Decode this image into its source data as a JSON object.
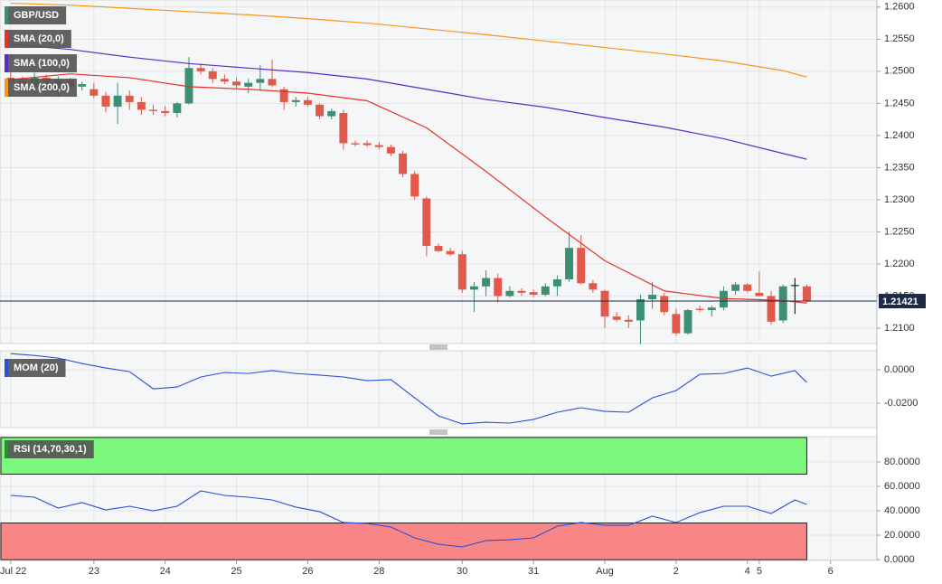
{
  "chart_data": [
    {
      "type": "candlestick",
      "name": "GBP/USD",
      "color": "#3d8f74",
      "up_color": "#3d8f74",
      "down_color": "#e0594a",
      "neutral_color": "#000000",
      "x": [
        0,
        1,
        2,
        3,
        4,
        5,
        6,
        7,
        8,
        9,
        10,
        11,
        12,
        13,
        14,
        15,
        16,
        17,
        18,
        19,
        20,
        21,
        22,
        23,
        24,
        25,
        26,
        27,
        28,
        29,
        30,
        31,
        32,
        33,
        34,
        35,
        36,
        37,
        38,
        39,
        40,
        41,
        42,
        43,
        44,
        45,
        46,
        47,
        48,
        49,
        50,
        51,
        52,
        53,
        54,
        55,
        56,
        57,
        58,
        59,
        60,
        61,
        62,
        63,
        64,
        65,
        66,
        67
      ],
      "open": [
        1.249,
        1.2485,
        1.2475,
        1.249,
        1.2468,
        1.2486,
        1.2476,
        1.2472,
        1.2462,
        1.2445,
        1.2462,
        1.2452,
        1.244,
        1.2438,
        1.2435,
        1.245,
        1.2505,
        1.25,
        1.2488,
        1.2484,
        1.2476,
        1.2482,
        1.2488,
        1.2472,
        1.2452,
        1.2455,
        1.2448,
        1.243,
        1.2435,
        1.2388,
        1.2388,
        1.2385,
        1.2382,
        1.2372,
        1.234,
        1.2302,
        1.2228,
        1.222,
        1.2215,
        1.216,
        1.2165,
        1.2178,
        1.215,
        1.2158,
        1.2156,
        1.2152,
        1.2165,
        1.2176,
        1.2225,
        1.217,
        1.2158,
        1.2118,
        1.2113,
        1.2112,
        1.2145,
        1.215,
        1.2122,
        1.2092,
        1.213,
        1.2128,
        1.2132,
        1.2158,
        1.2168,
        1.2155,
        1.215,
        1.2112,
        1.2167,
        1.2165
      ],
      "high": [
        1.25,
        1.2492,
        1.2498,
        1.2495,
        1.2492,
        1.249,
        1.2484,
        1.2482,
        1.2468,
        1.2482,
        1.247,
        1.246,
        1.2448,
        1.2446,
        1.2452,
        1.2522,
        1.2512,
        1.2505,
        1.2495,
        1.249,
        1.2488,
        1.251,
        1.2518,
        1.2476,
        1.246,
        1.246,
        1.245,
        1.2442,
        1.244,
        1.2392,
        1.2392,
        1.239,
        1.2386,
        1.2376,
        1.2345,
        1.2305,
        1.2232,
        1.2225,
        1.222,
        1.2172,
        1.219,
        1.2185,
        1.2165,
        1.2162,
        1.216,
        1.217,
        1.2182,
        1.225,
        1.2245,
        1.2175,
        1.216,
        1.2125,
        1.212,
        1.2152,
        1.2172,
        1.2155,
        1.213,
        1.213,
        1.2135,
        1.2135,
        1.2165,
        1.2172,
        1.217,
        1.2188,
        1.2158,
        1.2168,
        1.2178,
        1.2168
      ],
      "low": [
        1.2478,
        1.247,
        1.2465,
        1.2462,
        1.246,
        1.2472,
        1.247,
        1.2458,
        1.2436,
        1.2418,
        1.244,
        1.2432,
        1.2432,
        1.243,
        1.2428,
        1.2448,
        1.2495,
        1.2482,
        1.248,
        1.2472,
        1.2466,
        1.247,
        1.2475,
        1.244,
        1.2445,
        1.2445,
        1.2425,
        1.2425,
        1.2378,
        1.2383,
        1.2382,
        1.2378,
        1.2368,
        1.2335,
        1.23,
        1.2212,
        1.2218,
        1.2212,
        1.2155,
        1.2125,
        1.215,
        1.214,
        1.2148,
        1.215,
        1.2148,
        1.215,
        1.215,
        1.2172,
        1.2168,
        1.2155,
        1.21,
        1.211,
        1.21,
        1.2075,
        1.213,
        1.212,
        1.2088,
        1.209,
        1.2125,
        1.2118,
        1.2128,
        1.2152,
        1.2155,
        1.215,
        1.2105,
        1.2108,
        1.2122,
        1.214
      ],
      "close": [
        1.2485,
        1.2475,
        1.249,
        1.2468,
        1.2486,
        1.2476,
        1.248,
        1.2462,
        1.2445,
        1.2462,
        1.2452,
        1.244,
        1.2438,
        1.2435,
        1.245,
        1.2505,
        1.25,
        1.2488,
        1.2484,
        1.2478,
        1.2482,
        1.2488,
        1.2478,
        1.2452,
        1.2455,
        1.2448,
        1.243,
        1.2438,
        1.2388,
        1.2386,
        1.2385,
        1.2382,
        1.2372,
        1.234,
        1.2305,
        1.2228,
        1.222,
        1.2215,
        1.216,
        1.2165,
        1.2178,
        1.215,
        1.2158,
        1.2155,
        1.2152,
        1.2165,
        1.2176,
        1.2225,
        1.217,
        1.216,
        1.2118,
        1.2113,
        1.211,
        1.2145,
        1.2152,
        1.2125,
        1.2092,
        1.2128,
        1.2128,
        1.2132,
        1.2158,
        1.2168,
        1.2158,
        1.215,
        1.211,
        1.2165,
        1.2167,
        1.2142
      ],
      "overlays": [
        {
          "name": "SMA (20,0)",
          "color": "#e8302a",
          "x": [
            0,
            5,
            10,
            15,
            20,
            25,
            30,
            35,
            40,
            45,
            50,
            55,
            60,
            65,
            67
          ],
          "values": [
            1.2487,
            1.2496,
            1.249,
            1.2476,
            1.2472,
            1.2466,
            1.2454,
            1.2412,
            1.2344,
            1.2273,
            1.2205,
            1.2158,
            1.2146,
            1.2143,
            1.2139
          ]
        },
        {
          "name": "SMA (100,0)",
          "color": "#5a2bc4",
          "x": [
            0,
            5,
            10,
            15,
            20,
            25,
            30,
            35,
            40,
            45,
            50,
            55,
            60,
            65,
            67
          ],
          "values": [
            1.2542,
            1.2534,
            1.2522,
            1.2512,
            1.2505,
            1.2498,
            1.2488,
            1.2472,
            1.2456,
            1.2444,
            1.2428,
            1.2413,
            1.2395,
            1.2372,
            1.2363
          ]
        },
        {
          "name": "SMA (200,0)",
          "color": "#f5961e",
          "x": [
            0,
            5,
            10,
            15,
            20,
            25,
            30,
            35,
            40,
            45,
            50,
            55,
            60,
            65,
            67
          ],
          "values": [
            1.2606,
            1.2603,
            1.2598,
            1.2593,
            1.2588,
            1.2582,
            1.2575,
            1.2566,
            1.2557,
            1.2547,
            1.2537,
            1.2527,
            1.2516,
            1.2501,
            1.2491
          ]
        }
      ],
      "last_price": 1.21421,
      "last_price_color": "#1c2a48",
      "xlim": [
        -0.9,
        72.9
      ],
      "ylim": [
        1.2076,
        1.2611
      ],
      "yticks": [
        {
          "value": 1.21,
          "label": "1.2100"
        },
        {
          "value": 1.215,
          "label": "1.2150"
        },
        {
          "value": 1.22,
          "label": "1.2200"
        },
        {
          "value": 1.225,
          "label": "1.2250"
        },
        {
          "value": 1.23,
          "label": "1.2300"
        },
        {
          "value": 1.235,
          "label": "1.2350"
        },
        {
          "value": 1.24,
          "label": "1.2400"
        },
        {
          "value": 1.245,
          "label": "1.2450"
        },
        {
          "value": 1.25,
          "label": "1.2500"
        },
        {
          "value": 1.255,
          "label": "1.2550"
        },
        {
          "value": 1.26,
          "label": "1.2600"
        }
      ],
      "grid": true
    },
    {
      "type": "line",
      "name": "MOM (20)",
      "color": "#2a4fd6",
      "x": [
        0,
        2,
        4,
        6,
        8,
        10,
        12,
        14,
        16,
        18,
        20,
        22,
        24,
        26,
        28,
        30,
        32,
        34,
        36,
        38,
        40,
        42,
        44,
        46,
        48,
        50,
        52,
        54,
        56,
        58,
        60,
        62,
        64,
        66,
        67
      ],
      "values": [
        0.0097,
        0.0086,
        0.007,
        0.0038,
        0.0011,
        -0.0011,
        -0.0114,
        -0.0103,
        -0.0043,
        -0.0016,
        -0.0022,
        -0.0005,
        -0.0022,
        -0.0032,
        -0.0043,
        -0.0065,
        -0.0059,
        -0.0168,
        -0.0276,
        -0.0324,
        -0.0314,
        -0.0319,
        -0.0297,
        -0.0254,
        -0.0227,
        -0.0249,
        -0.0254,
        -0.0168,
        -0.0124,
        -0.0027,
        -0.0022,
        0.0011,
        -0.0038,
        -0.0005,
        -0.0076
      ],
      "xlim": [
        -0.9,
        72.9
      ],
      "ylim": [
        -0.0346,
        0.0114
      ],
      "yticks": [
        {
          "value": -0.02,
          "label": "-0.0200"
        },
        {
          "value": 0,
          "label": "0.0000"
        }
      ],
      "grid": true
    },
    {
      "type": "line",
      "name": "RSI (14,70,30,1)",
      "color": "#2a4fd6",
      "legend_color": "#2e8b3e",
      "x": [
        0,
        2,
        4,
        6,
        8,
        10,
        12,
        14,
        16,
        18,
        20,
        22,
        24,
        26,
        28,
        30,
        32,
        34,
        36,
        38,
        40,
        42,
        44,
        46,
        48,
        50,
        52,
        54,
        56,
        58,
        60,
        62,
        64,
        66,
        67
      ],
      "values": [
        52.6,
        51.1,
        42.2,
        46.7,
        40.7,
        43.7,
        40.0,
        43.7,
        56.3,
        52.6,
        51.1,
        48.9,
        43.0,
        39.3,
        30.4,
        29.6,
        26.7,
        17.8,
        12.6,
        10.4,
        15.6,
        16.3,
        17.8,
        27.4,
        30.4,
        28.1,
        28.1,
        35.6,
        30.4,
        38.5,
        43.7,
        43.7,
        37.8,
        48.9,
        45.2
      ],
      "bands": [
        {
          "from": 70,
          "to": 100,
          "color": "#7cf97c"
        },
        {
          "from": 0,
          "to": 30,
          "color": "#f98686"
        }
      ],
      "xlim": [
        -0.9,
        72.9
      ],
      "ylim": [
        -0.7,
        100.7
      ],
      "yticks": [
        {
          "value": 0,
          "label": "0.0000"
        },
        {
          "value": 20,
          "label": "20.0000"
        },
        {
          "value": 40,
          "label": "40.0000"
        },
        {
          "value": 60,
          "label": "60.0000"
        },
        {
          "value": 80,
          "label": "80.0000"
        }
      ],
      "xticks": [
        {
          "value": 0,
          "label": "Jul 22"
        },
        {
          "value": 7,
          "label": "23"
        },
        {
          "value": 13,
          "label": "24"
        },
        {
          "value": 19,
          "label": "25"
        },
        {
          "value": 25,
          "label": "26"
        },
        {
          "value": 31,
          "label": "28"
        },
        {
          "value": 38,
          "label": "30"
        },
        {
          "value": 44,
          "label": "31"
        },
        {
          "value": 50,
          "label": "Aug"
        },
        {
          "value": 56,
          "label": "2"
        },
        {
          "value": 62,
          "label": "4"
        },
        {
          "value": 63,
          "label": "5"
        },
        {
          "value": 69,
          "label": "6"
        }
      ],
      "grid": true
    }
  ]
}
